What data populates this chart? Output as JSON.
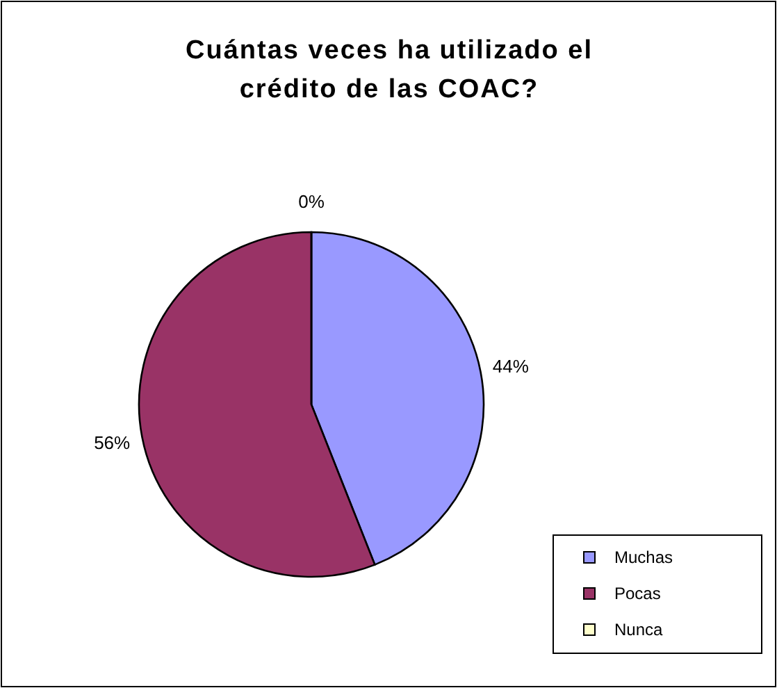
{
  "chart_data": {
    "type": "pie",
    "title": "Cuántas veces ha utilizado el crédito de las COAC?",
    "categories": [
      "Muchas",
      "Pocas",
      "Nunca"
    ],
    "values": [
      44,
      56,
      0
    ],
    "colors": [
      "#9999ff",
      "#993366",
      "#ffffcc"
    ],
    "value_labels": [
      "44%",
      "56%",
      "0%"
    ],
    "legend": "bottom right"
  }
}
